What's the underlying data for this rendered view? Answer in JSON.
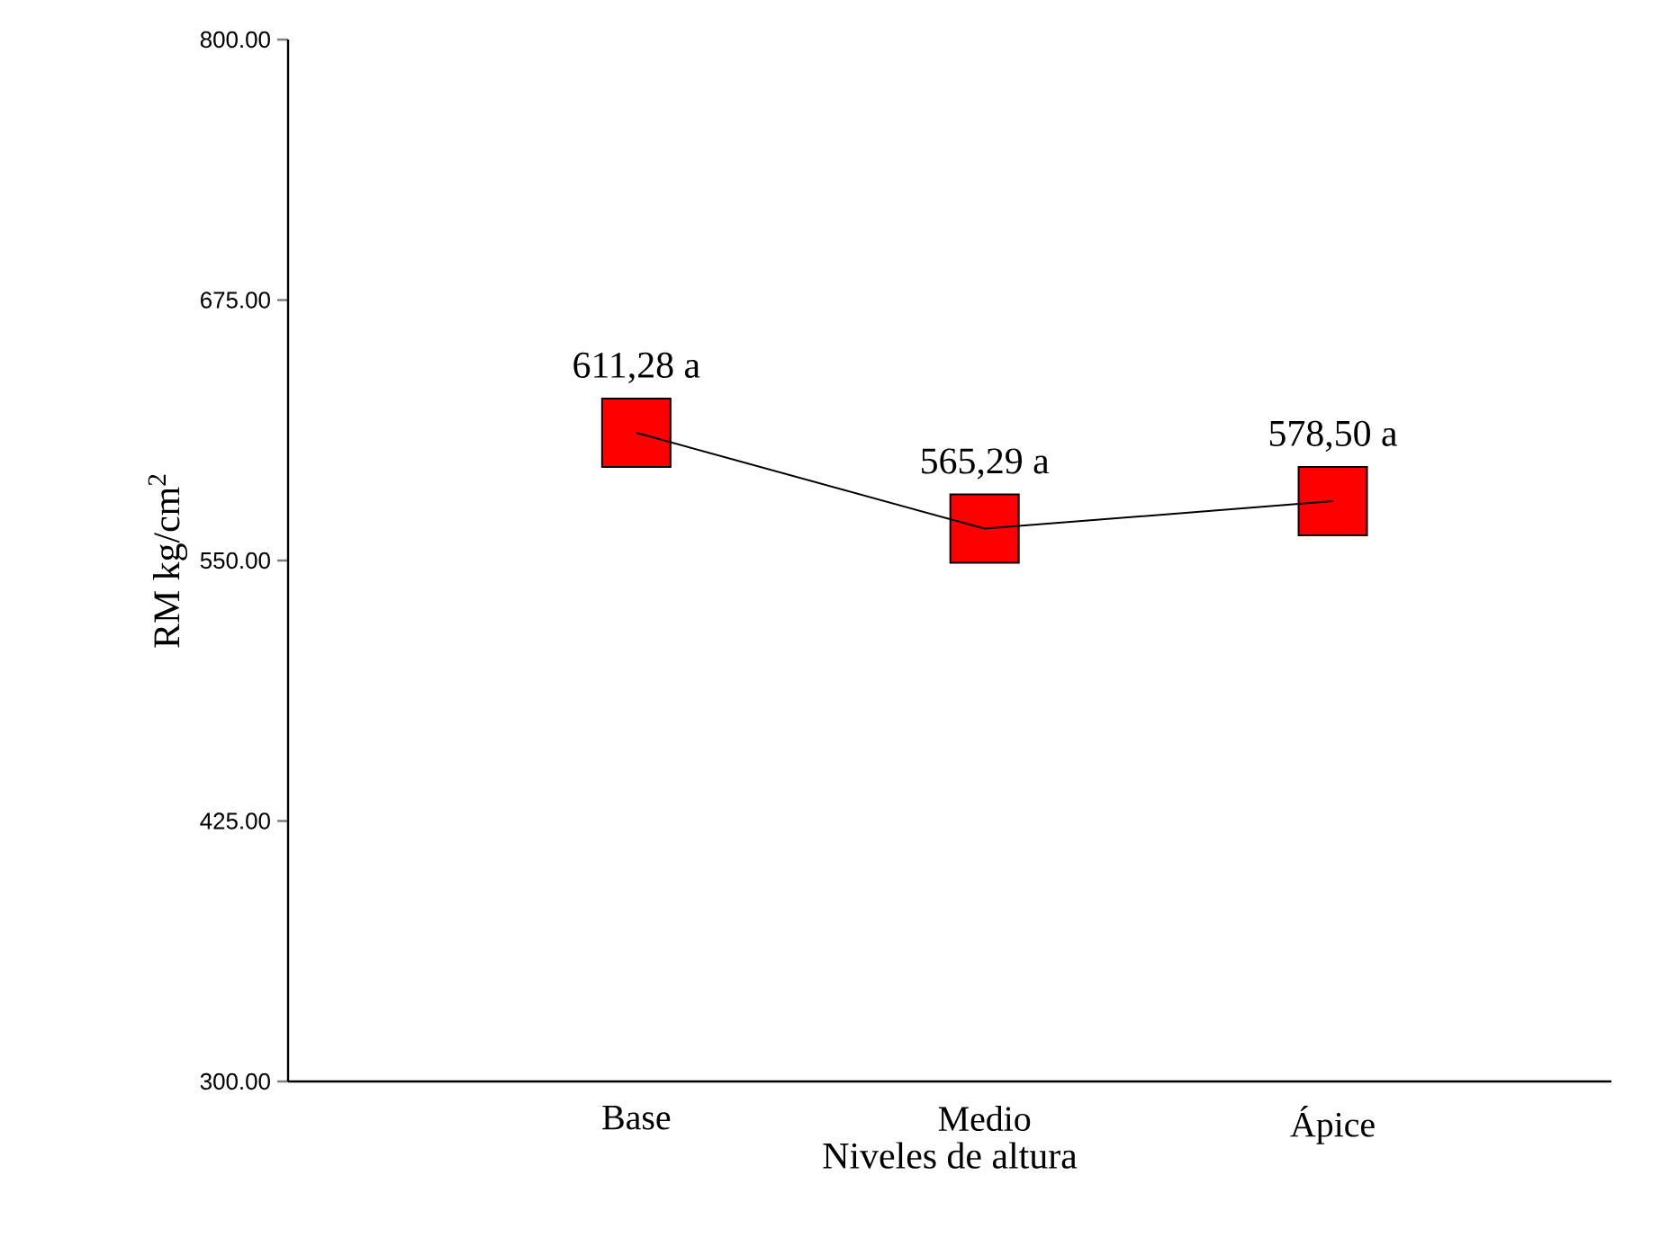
{
  "chart_data": {
    "type": "line",
    "xlabel": "Niveles de altura",
    "ylabel": "RM kg/cm$^{2}$",
    "categories": [
      "Base",
      "Medio",
      "Ápice"
    ],
    "series": [
      {
        "color": "#ff0000",
        "values": [
          611.28,
          565.29,
          578.5
        ],
        "value_labels": [
          "611,28 a",
          "565,29 a",
          "578,50 a"
        ]
      }
    ],
    "ylim": [
      300,
      800
    ],
    "yticks": [
      {
        "value": 300,
        "label": "300.00"
      },
      {
        "value": 425,
        "label": "425.00"
      },
      {
        "value": 550,
        "label": "550.00"
      },
      {
        "value": 675,
        "label": "675.00"
      },
      {
        "value": 800,
        "label": "800.00"
      }
    ],
    "marker": "square",
    "line_style": "solid"
  }
}
